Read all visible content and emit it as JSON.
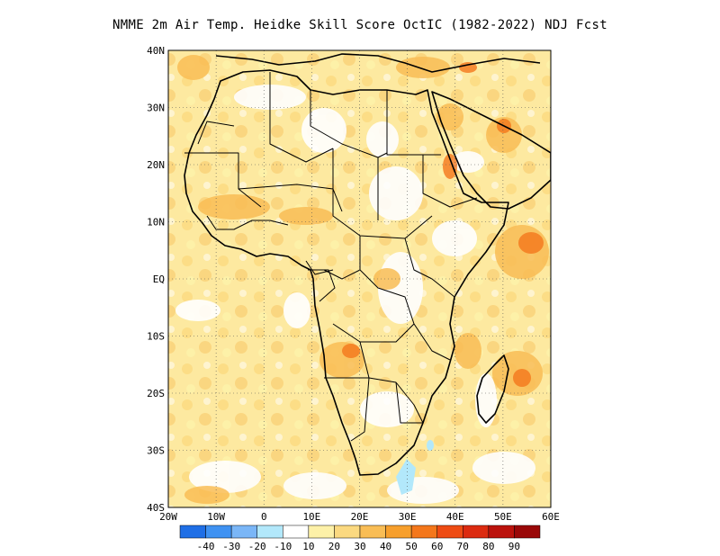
{
  "title": "NMME  2m Air Temp. Heidke Skill Score OctIC (1982-2022) NDJ Fcst",
  "axes": {
    "lon_labels": [
      "20W",
      "10W",
      "0",
      "10E",
      "20E",
      "30E",
      "40E",
      "50E",
      "60E"
    ],
    "lat_labels": [
      "40N",
      "30N",
      "20N",
      "10N",
      "EQ",
      "10S",
      "20S",
      "30S",
      "40S"
    ]
  },
  "colorbar": {
    "colors": [
      "#1f6fe6",
      "#3f92f2",
      "#7ab6f7",
      "#b2e8fb",
      "#ffffff",
      "#fdf1a8",
      "#fbd980",
      "#f9bd55",
      "#f79f2c",
      "#f4771b",
      "#ee4b13",
      "#dc2b10",
      "#bb120c",
      "#9a0808"
    ],
    "labels": [
      "-40",
      "-30",
      "-20",
      "-10",
      "10",
      "20",
      "30",
      "40",
      "50",
      "60",
      "70",
      "80",
      "90"
    ]
  },
  "map": {
    "region": "Africa",
    "lon_range": [
      -20,
      60
    ],
    "lat_range": [
      -40,
      40
    ],
    "grid": true
  }
}
